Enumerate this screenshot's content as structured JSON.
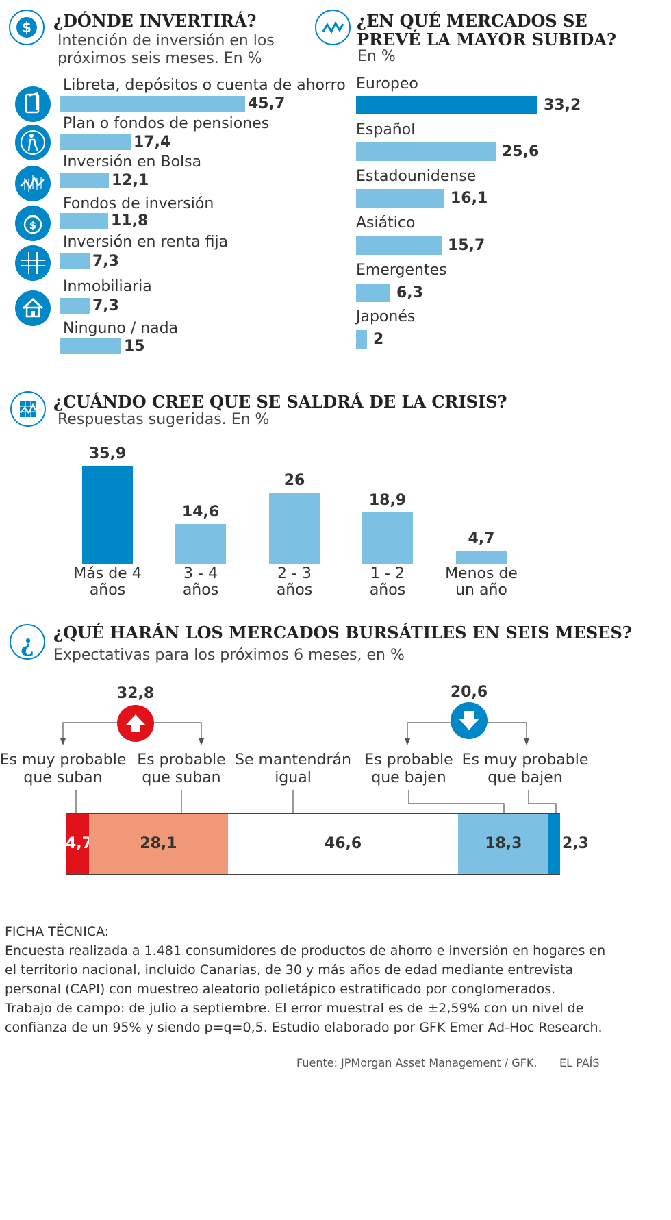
{
  "section1": {
    "title": "¿DÓNDE INVERTIRÁ?",
    "subtitle_line1": "Intención de inversión en los",
    "subtitle_line2": "próximos seis meses. En %",
    "icon": "dollar-icon",
    "items": [
      {
        "label": "Libreta, depósitos o cuenta de ahorro",
        "value": "45,7",
        "icon": "passbook-icon"
      },
      {
        "label": "Plan o fondos de pensiones",
        "value": "17,4",
        "icon": "pensioner-icon"
      },
      {
        "label": "Inversión en Bolsa",
        "value": "12,1",
        "icon": "stock-chart-icon"
      },
      {
        "label": "Fondos de inversión",
        "value": "11,8",
        "icon": "money-bag-icon"
      },
      {
        "label": "Inversión en renta fija",
        "value": "7,3",
        "icon": "grid-icon"
      },
      {
        "label": "Inmobiliaria",
        "value": "7,3",
        "icon": "house-icon"
      },
      {
        "label": "Ninguno / nada",
        "value": "15",
        "icon": ""
      }
    ]
  },
  "section2": {
    "title_line1": "¿EN QUÉ MERCADOS SE",
    "title_line2": "PREVÉ LA MAYOR SUBIDA?",
    "subtitle": "En %",
    "icon": "trend-line-icon",
    "items": [
      {
        "label": "Europeo",
        "value": "33,2"
      },
      {
        "label": "Español",
        "value": "25,6"
      },
      {
        "label": "Estadounidense",
        "value": "16,1"
      },
      {
        "label": "Asiático",
        "value": "15,7"
      },
      {
        "label": "Emergentes",
        "value": "6,3"
      },
      {
        "label": "Japonés",
        "value": "2"
      }
    ]
  },
  "section3": {
    "title": "¿CUÁNDO CREE QUE SE SALDRÁ DE LA CRISIS?",
    "subtitle": "Respuestas sugeridas. En %",
    "icon": "chart-grid-icon",
    "items": [
      {
        "line1": "Más de 4",
        "line2": "años",
        "value": "35,9"
      },
      {
        "line1": "3 - 4",
        "line2": "años",
        "value": "14,6"
      },
      {
        "line1": "2 - 3",
        "line2": "años",
        "value": "26"
      },
      {
        "line1": "1 - 2",
        "line2": "años",
        "value": "18,9"
      },
      {
        "line1": "Menos de",
        "line2": "un año",
        "value": "4,7"
      }
    ]
  },
  "section4": {
    "title": "¿QUÉ HARÁN LOS MERCADOS BURSÁTILES EN SEIS MESES?",
    "subtitle": "Expectativas para los próximos 6 meses, en %",
    "icon": "question-icon",
    "up_total": "32,8",
    "down_total": "20,6",
    "labels": [
      {
        "line1": "Es muy probable",
        "line2": "que suban"
      },
      {
        "line1": "Es probable",
        "line2": "que suban"
      },
      {
        "line1": "Se mantendrán",
        "line2": "igual"
      },
      {
        "line1": "Es probable",
        "line2": "que bajen"
      },
      {
        "line1": "Es muy probable",
        "line2": "que bajen"
      }
    ],
    "segments": [
      {
        "value": "4,7",
        "color": "#e2121b"
      },
      {
        "value": "28,1",
        "color": "#ef9979"
      },
      {
        "value": "46,6",
        "color": "#ffffff"
      },
      {
        "value": "18,3",
        "color": "#7cc1e4"
      },
      {
        "value": "2,3",
        "color": "#0087c7"
      }
    ]
  },
  "chart_data": [
    {
      "type": "bar",
      "orientation": "horizontal",
      "title": "¿DÓNDE INVERTIRÁ?",
      "subtitle": "Intención de inversión en los próximos seis meses. En %",
      "categories": [
        "Libreta, depósitos o cuenta de ahorro",
        "Plan o fondos de pensiones",
        "Inversión en Bolsa",
        "Fondos de inversión",
        "Inversión en renta fija",
        "Inmobiliaria",
        "Ninguno / nada"
      ],
      "values": [
        45.7,
        17.4,
        12.1,
        11.8,
        7.3,
        7.3,
        15
      ]
    },
    {
      "type": "bar",
      "orientation": "horizontal",
      "title": "¿EN QUÉ MERCADOS SE PREVÉ LA MAYOR SUBIDA?",
      "subtitle": "En %",
      "categories": [
        "Europeo",
        "Español",
        "Estadounidense",
        "Asiático",
        "Emergentes",
        "Japonés"
      ],
      "values": [
        33.2,
        25.6,
        16.1,
        15.7,
        6.3,
        2
      ]
    },
    {
      "type": "bar",
      "orientation": "vertical",
      "title": "¿CUÁNDO CREE QUE SE SALDRÁ DE LA CRISIS?",
      "subtitle": "Respuestas sugeridas. En %",
      "categories": [
        "Más de 4 años",
        "3 - 4 años",
        "2 - 3 años",
        "1 - 2 años",
        "Menos de un año"
      ],
      "values": [
        35.9,
        14.6,
        26,
        18.9,
        4.7
      ]
    },
    {
      "type": "bar",
      "orientation": "stacked-horizontal",
      "title": "¿QUÉ HARÁN LOS MERCADOS BURSÁTILES EN SEIS MESES?",
      "subtitle": "Expectativas para los próximos 6 meses, en %",
      "categories": [
        "Es muy probable que suban",
        "Es probable que suban",
        "Se mantendrán igual",
        "Es probable que bajen",
        "Es muy probable que bajen"
      ],
      "values": [
        4.7,
        28.1,
        46.6,
        18.3,
        2.3
      ],
      "annotations": [
        {
          "group": "suban",
          "total": 32.8
        },
        {
          "group": "bajen",
          "total": 20.6
        }
      ]
    }
  ],
  "ficha": {
    "heading": "FICHA TÉCNICA:",
    "lines": [
      "Encuesta realizada a 1.481 consumidores de productos de ahorro e inversión en hogares en",
      "el territorio nacional, incluido Canarias, de 30 y más años de edad mediante entrevista",
      "personal (CAPI) con muestreo aleatorio polietápico estratificado por conglomerados.",
      "Trabajo de campo: de julio a septiembre. El error muestral es de  ±2,59% con un nivel de",
      "confianza de un 95% y siendo p=q=0,5.  Estudio elaborado por GFK Emer Ad-Hoc Research."
    ]
  },
  "footer": {
    "source": "Fuente: JPMorgan Asset Management / GFK.",
    "brand": "EL PAÍS"
  }
}
